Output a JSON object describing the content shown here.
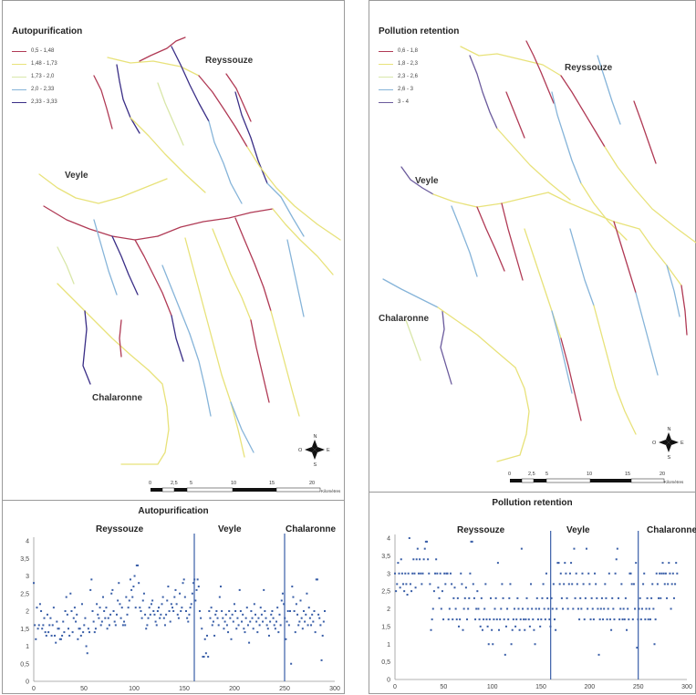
{
  "maps": [
    {
      "title": "Autopurification",
      "legend": [
        {
          "label": "0,5 - 1,48",
          "color": "#b03a55"
        },
        {
          "label": "1,48 - 1,73",
          "color": "#e8e27a"
        },
        {
          "label": "1,73 - 2,0",
          "color": "#d9e7a9"
        },
        {
          "label": "2,0 - 2,33",
          "color": "#86b4d9"
        },
        {
          "label": "2,33 - 3,33",
          "color": "#3a2e86"
        }
      ],
      "rivers": [
        "Reyssouze",
        "Veyle",
        "Chalaronne"
      ],
      "scale": {
        "ticks": [
          "0",
          "2,5",
          "5",
          "10",
          "15",
          "20"
        ],
        "unit": "Kilomètres"
      },
      "compass": [
        "N",
        "E",
        "S",
        "O"
      ]
    },
    {
      "title": "Pollution retention",
      "legend": [
        {
          "label": "0,6 - 1,8",
          "color": "#b03a55"
        },
        {
          "label": "1,8 - 2,3",
          "color": "#e8e27a"
        },
        {
          "label": "2,3 - 2,6",
          "color": "#d9e7a9"
        },
        {
          "label": "2,6 - 3",
          "color": "#86b4d9"
        },
        {
          "label": "3 - 4",
          "color": "#6a5a9c"
        }
      ],
      "rivers": [
        "Reyssouze",
        "Veyle",
        "Chalaronne"
      ],
      "scale": {
        "ticks": [
          "0",
          "2,5",
          "5",
          "10",
          "15",
          "20"
        ],
        "unit": "Kilomètres"
      },
      "compass": [
        "N",
        "E",
        "S",
        "O"
      ]
    }
  ],
  "chart_data": [
    {
      "type": "scatter",
      "title": "Autopurification",
      "xlim": [
        0,
        300
      ],
      "ylim": [
        0,
        4
      ],
      "xticks": [
        "0",
        "50",
        "100",
        "150",
        "200",
        "250",
        "300"
      ],
      "yticks": [
        "0",
        "0,5",
        "1",
        "1,5",
        "2",
        "2,5",
        "3",
        "3,5",
        "4"
      ],
      "regions": [
        "Reyssouze",
        "Veyle",
        "Chalaronne"
      ],
      "dividers_x": [
        160,
        250
      ],
      "color": "#3a5fa8",
      "y": [
        2.8,
        1.6,
        1.2,
        2.1,
        1.5,
        1.6,
        2.2,
        2.0,
        1.5,
        1.6,
        1.8,
        1.4,
        1.3,
        1.9,
        1.4,
        1.6,
        1.8,
        1.3,
        1.6,
        2.1,
        1.3,
        1.1,
        1.7,
        1.5,
        1.5,
        1.2,
        1.2,
        1.3,
        1.7,
        1.4,
        2.0,
        2.4,
        1.9,
        1.5,
        1.3,
        2.5,
        2.0,
        1.4,
        1.8,
        2.1,
        1.7,
        1.9,
        1.2,
        1.5,
        1.5,
        1.3,
        2.2,
        1.4,
        1.6,
        1.8,
        1.0,
        0.8,
        1.5,
        1.4,
        2.6,
        2.9,
        2.0,
        1.7,
        1.4,
        1.5,
        2.2,
        1.9,
        1.8,
        2.1,
        1.6,
        1.7,
        2.4,
        2.0,
        1.8,
        2.1,
        1.5,
        1.8,
        1.6,
        1.9,
        2.5,
        2.6,
        2.0,
        1.7,
        1.6,
        1.9,
        2.3,
        2.8,
        2.2,
        1.8,
        2.1,
        1.6,
        1.7,
        1.6,
        2.4,
        1.9,
        2.1,
        2.3,
        2.9,
        2.6,
        2.4,
        2.7,
        3.0,
        2.1,
        3.3,
        3.3,
        2.8,
        2.1,
        2.0,
        1.8,
        2.3,
        2.5,
        1.9,
        1.5,
        1.6,
        1.8,
        2.1,
        1.9,
        2.2,
        2.3,
        2.0,
        1.9,
        1.7,
        1.6,
        2.0,
        2.1,
        1.8,
        1.9,
        2.2,
        2.4,
        1.8,
        1.6,
        1.9,
        2.3,
        2.7,
        2.0,
        1.7,
        2.2,
        2.1,
        2.0,
        2.4,
        2.6,
        2.2,
        1.9,
        1.8,
        2.5,
        2.0,
        2.1,
        2.8,
        2.9,
        2.4,
        2.0,
        1.8,
        1.7,
        1.9,
        2.1,
        2.2,
        2.5,
        2.8,
        2.9,
        2.3,
        2.6,
        2.9,
        2.7,
        2.0,
        1.8,
        1.5,
        0.7,
        0.7,
        1.2,
        0.8,
        1.3,
        0.7,
        2.0,
        1.8,
        2.1,
        1.6,
        1.7,
        1.3,
        1.9,
        2.0,
        1.8,
        1.6,
        2.4,
        2.7,
        2.0,
        1.8,
        1.5,
        1.7,
        1.9,
        1.6,
        1.4,
        2.0,
        1.8,
        1.2,
        1.9,
        1.7,
        2.2,
        2.0,
        1.5,
        1.8,
        1.6,
        2.6,
        2.0,
        1.7,
        1.9,
        1.5,
        1.4,
        1.8,
        2.1,
        1.6,
        1.1,
        1.7,
        2.0,
        1.8,
        1.5,
        2.2,
        1.9,
        1.7,
        1.4,
        1.8,
        1.6,
        2.1,
        1.9,
        1.7,
        2.6,
        2.0,
        1.8,
        1.6,
        1.5,
        1.3,
        1.7,
        1.9,
        2.0,
        1.8,
        1.6,
        1.5,
        1.7,
        2.1,
        1.4,
        1.9,
        1.6,
        2.3,
        2.5,
        2.2,
        1.8,
        1.2,
        1.7,
        2.0,
        1.6,
        2.0,
        0.5,
        2.7,
        2.4,
        2.0,
        1.4,
        2.2,
        1.9,
        1.6,
        1.7,
        2.3,
        1.8,
        1.5,
        2.0,
        1.7,
        1.9,
        2.5,
        1.6,
        2.1,
        1.8,
        1.6,
        1.9,
        1.7,
        2.0,
        1.4,
        2.9,
        2.9,
        1.9,
        1.8,
        1.6,
        0.6,
        1.3,
        1.7,
        2.0
      ]
    },
    {
      "type": "scatter",
      "title": "Pollution retention",
      "xlim": [
        0,
        300
      ],
      "ylim": [
        0,
        4
      ],
      "xticks": [
        "0",
        "50",
        "100",
        "150",
        "200",
        "250",
        "300"
      ],
      "yticks": [
        "0",
        "0,5",
        "1",
        "1,5",
        "2",
        "2,5",
        "3",
        "3,5",
        "4"
      ],
      "regions": [
        "Reyssouze",
        "Veyle",
        "Chalaronne"
      ],
      "dividers_x": [
        160,
        250
      ],
      "color": "#3a5fa8",
      "y": [
        3.0,
        2.5,
        2.7,
        3.3,
        3.0,
        2.6,
        3.4,
        3.0,
        2.7,
        2.5,
        3.0,
        2.7,
        2.4,
        3.0,
        4.0,
        2.7,
        2.5,
        3.0,
        3.4,
        3.0,
        2.6,
        3.4,
        3.7,
        3.0,
        3.4,
        3.0,
        2.7,
        3.0,
        3.4,
        3.7,
        3.9,
        3.9,
        3.4,
        3.0,
        2.7,
        1.4,
        1.7,
        2.0,
        2.5,
        3.0,
        3.4,
        3.0,
        2.6,
        2.3,
        3.0,
        2.0,
        2.5,
        1.7,
        3.0,
        2.7,
        3.0,
        3.0,
        1.7,
        2.0,
        3.0,
        2.7,
        1.7,
        2.3,
        2.6,
        2.0,
        1.7,
        2.3,
        1.5,
        1.7,
        3.0,
        2.7,
        1.4,
        2.0,
        2.3,
        2.6,
        1.7,
        2.0,
        2.3,
        3.0,
        3.9,
        3.9,
        2.7,
        2.3,
        1.7,
        2.0,
        2.5,
        2.0,
        1.7,
        1.5,
        2.3,
        1.4,
        1.7,
        2.0,
        2.7,
        1.7,
        1.5,
        1.0,
        1.7,
        2.3,
        1.4,
        1.0,
        1.7,
        2.0,
        2.3,
        1.7,
        3.3,
        1.4,
        1.7,
        2.0,
        2.7,
        2.3,
        1.7,
        0.7,
        1.5,
        2.0,
        1.7,
        2.3,
        2.7,
        1.0,
        1.4,
        1.7,
        2.0,
        1.5,
        1.7,
        2.3,
        2.0,
        1.4,
        1.7,
        3.7,
        2.0,
        1.7,
        1.4,
        1.7,
        2.3,
        2.0,
        1.7,
        1.5,
        2.7,
        2.0,
        1.7,
        1.4,
        1.0,
        2.0,
        2.3,
        1.7,
        2.0,
        1.5,
        1.7,
        2.3,
        2.7,
        2.0,
        1.7,
        3.0,
        2.3,
        2.0,
        1.7,
        1.5,
        2.3,
        2.0,
        2.7,
        1.7,
        1.4,
        2.0,
        3.3,
        3.3,
        2.7,
        3.0,
        2.3,
        2.0,
        2.7,
        3.3,
        3.0,
        2.3,
        2.0,
        2.7,
        3.0,
        3.3,
        2.7,
        2.0,
        3.7,
        2.3,
        3.0,
        2.7,
        2.0,
        1.7,
        2.3,
        2.0,
        3.0,
        2.7,
        1.7,
        2.3,
        3.7,
        2.0,
        3.0,
        2.7,
        1.7,
        2.3,
        2.0,
        1.7,
        3.0,
        2.7,
        2.3,
        2.0,
        0.7,
        1.7,
        2.0,
        2.3,
        1.7,
        2.0,
        2.7,
        2.3,
        1.7,
        2.0,
        3.0,
        1.7,
        1.4,
        2.3,
        2.0,
        1.7,
        3.0,
        3.4,
        3.7,
        2.3,
        1.7,
        2.0,
        2.7,
        1.7,
        2.0,
        1.7,
        2.3,
        1.4,
        2.0,
        1.7,
        3.0,
        3.0,
        2.7,
        1.7,
        2.7,
        2.0,
        3.3,
        0.9,
        1.7,
        2.0,
        2.3,
        1.7,
        2.0,
        2.7,
        3.0,
        1.7,
        2.0,
        2.3,
        1.7,
        2.0,
        1.7,
        2.3,
        2.7,
        2.0,
        1.0,
        1.7,
        3.0,
        2.7,
        2.3,
        3.0,
        2.3,
        3.0,
        3.3,
        3.0,
        2.7,
        3.0,
        2.3,
        2.7,
        3.3,
        3.0,
        2.0,
        2.7,
        3.0,
        2.3,
        2.7,
        3.3,
        3.0
      ]
    }
  ]
}
